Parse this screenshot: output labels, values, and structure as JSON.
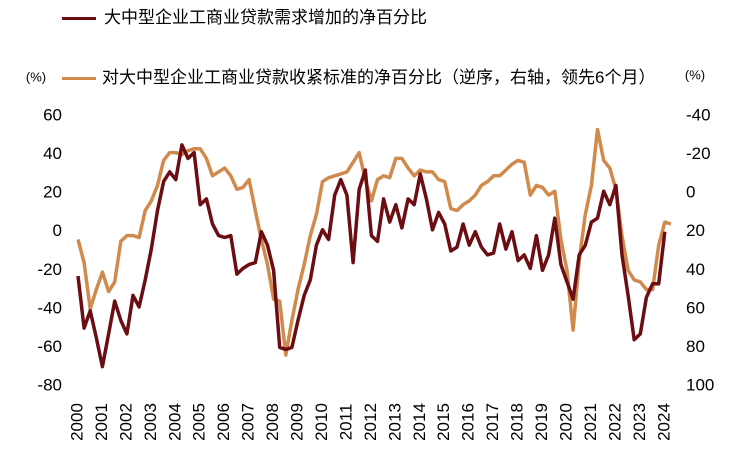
{
  "chart_data": {
    "type": "line",
    "ylabel": "(%)",
    "y2label": "(%)",
    "xlim": [
      2000,
      2024.5
    ],
    "xticks": [
      2000,
      2001,
      2002,
      2003,
      2004,
      2005,
      2006,
      2007,
      2008,
      2009,
      2010,
      2011,
      2012,
      2013,
      2014,
      2015,
      2016,
      2017,
      2018,
      2019,
      2020,
      2021,
      2022,
      2023,
      2024
    ],
    "ylim": [
      -80,
      60
    ],
    "yticks": [
      60,
      40,
      20,
      0,
      -20,
      -40,
      -60,
      -80
    ],
    "y2lim": [
      -40,
      100
    ],
    "y2ticks": [
      -40,
      -20,
      0,
      20,
      40,
      60,
      80,
      100
    ],
    "y2_inverted": true,
    "grid": false,
    "x": [
      2000,
      2000.25,
      2000.5,
      2000.75,
      2001,
      2001.25,
      2001.5,
      2001.75,
      2002,
      2002.25,
      2002.5,
      2002.75,
      2003,
      2003.25,
      2003.5,
      2003.75,
      2004,
      2004.25,
      2004.5,
      2004.75,
      2005,
      2005.25,
      2005.5,
      2005.75,
      2006,
      2006.25,
      2006.5,
      2006.75,
      2007,
      2007.25,
      2007.5,
      2007.75,
      2008,
      2008.25,
      2008.5,
      2008.75,
      2009,
      2009.25,
      2009.5,
      2009.75,
      2010,
      2010.25,
      2010.5,
      2010.75,
      2011,
      2011.25,
      2011.5,
      2011.75,
      2012,
      2012.25,
      2012.5,
      2012.75,
      2013,
      2013.25,
      2013.5,
      2013.75,
      2014,
      2014.25,
      2014.5,
      2014.75,
      2015,
      2015.25,
      2015.5,
      2015.75,
      2016,
      2016.25,
      2016.5,
      2016.75,
      2017,
      2017.25,
      2017.5,
      2017.75,
      2018,
      2018.25,
      2018.5,
      2018.75,
      2019,
      2019.25,
      2019.5,
      2019.75,
      2020,
      2020.25,
      2020.5,
      2020.75,
      2021,
      2021.25,
      2021.5,
      2021.75,
      2022,
      2022.25,
      2022.5,
      2022.75,
      2023,
      2023.25,
      2023.5,
      2023.75,
      2024,
      2024.25
    ],
    "series": [
      {
        "name": "大中型企业工商业贷款需求增加的净百分比",
        "color": "#6b0d12",
        "axis": "y",
        "values": [
          -23,
          -50,
          -41,
          -55,
          -70,
          -53,
          -36,
          -46,
          -53,
          -33,
          -39,
          -25,
          -9,
          11,
          26,
          31,
          27,
          45,
          38,
          41,
          14,
          17,
          4,
          -2,
          -3,
          -2,
          -22,
          -19,
          -17,
          -16,
          0,
          -7,
          -20,
          -60,
          -61,
          -60,
          -46,
          -33,
          -25,
          -7,
          1,
          -4,
          19,
          27,
          19,
          -16,
          22,
          32,
          -2,
          -5,
          17,
          5,
          14,
          2,
          17,
          14,
          30,
          17,
          1,
          10,
          4,
          -10,
          -8,
          4,
          -7,
          0,
          -8,
          -12,
          -11,
          4,
          -9,
          0,
          -15,
          -12,
          -19,
          -2,
          -20,
          -12,
          7,
          -17,
          -26,
          -35,
          -12,
          -7,
          5,
          7,
          21,
          14,
          24,
          -12,
          -33,
          -56,
          -53,
          -34,
          -27,
          -27,
          0,
          null
        ]
      },
      {
        "name": "对大中型企业工商业贷款收紧标准的净百分比（逆序，右轴，领先6个月）",
        "color": "#d08a4c",
        "axis": "y2",
        "values": [
          24,
          36,
          60,
          50,
          41,
          51,
          46,
          25,
          22,
          22,
          23,
          9,
          4,
          -4,
          -17,
          -21,
          -21,
          -20,
          -22,
          -23,
          -23,
          -18,
          -9,
          -11,
          -13,
          -9,
          -2,
          -3,
          -7,
          9,
          24,
          37,
          55,
          56,
          84,
          66,
          50,
          37,
          22,
          11,
          -6,
          -8,
          -9,
          -10,
          -11,
          -16,
          -21,
          -7,
          4,
          -7,
          -9,
          -8,
          -18,
          -18,
          -13,
          -9,
          -12,
          -11,
          -11,
          -7,
          -6,
          8,
          9,
          6,
          4,
          1,
          -4,
          -6,
          -9,
          -9,
          -12,
          -15,
          -17,
          -16,
          1,
          -4,
          -3,
          1,
          -1,
          24,
          40,
          71,
          35,
          11,
          -4,
          -33,
          -17,
          -13,
          -2,
          22,
          40,
          45,
          46,
          50,
          50,
          27,
          15,
          16
        ]
      }
    ]
  }
}
